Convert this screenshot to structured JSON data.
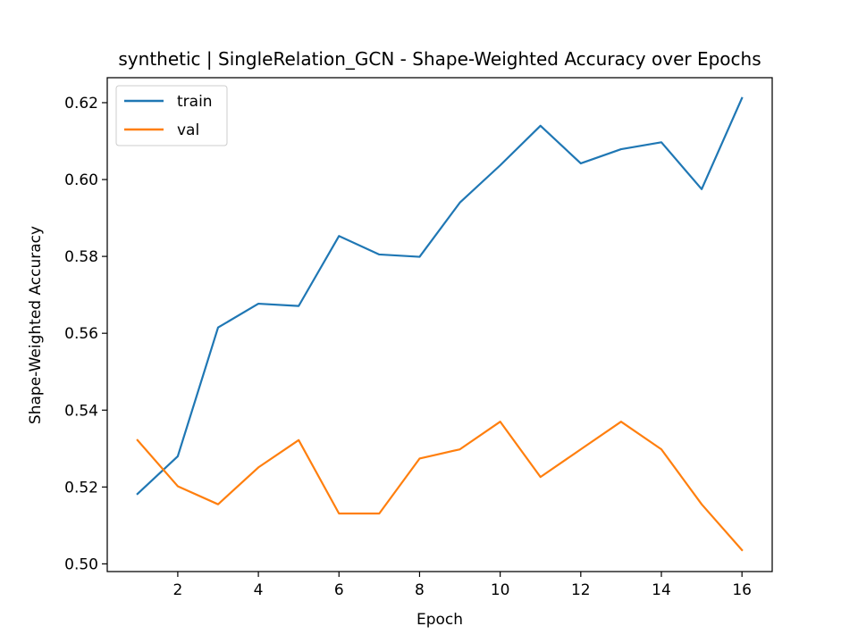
{
  "chart_data": {
    "type": "line",
    "title": "synthetic | SingleRelation_GCN - Shape-Weighted Accuracy over Epochs",
    "xlabel": "Epoch",
    "ylabel": "Shape-Weighted Accuracy",
    "x": [
      1,
      2,
      3,
      4,
      5,
      6,
      7,
      8,
      9,
      10,
      11,
      12,
      13,
      14,
      15,
      16
    ],
    "xlim": [
      0.25,
      16.75
    ],
    "ylim": [
      0.498,
      0.6265
    ],
    "xticks": [
      2,
      4,
      6,
      8,
      10,
      12,
      14,
      16
    ],
    "xtick_labels": [
      "2",
      "4",
      "6",
      "8",
      "10",
      "12",
      "14",
      "16"
    ],
    "yticks": [
      0.5,
      0.52,
      0.54,
      0.56,
      0.58,
      0.6,
      0.62
    ],
    "ytick_labels": [
      "0.50",
      "0.52",
      "0.54",
      "0.56",
      "0.58",
      "0.60",
      "0.62"
    ],
    "grid": false,
    "legend_position": "top-left",
    "series": [
      {
        "name": "train",
        "color": "#1f77b4",
        "values": [
          0.5182,
          0.528,
          0.5615,
          0.5677,
          0.5671,
          0.5853,
          0.5805,
          0.5799,
          0.594,
          0.6037,
          0.614,
          0.6042,
          0.6079,
          0.6097,
          0.5975,
          0.6212
        ]
      },
      {
        "name": "val",
        "color": "#ff7f0e",
        "values": [
          0.5322,
          0.5202,
          0.5155,
          0.5251,
          0.5322,
          0.5131,
          0.5131,
          0.5274,
          0.5298,
          0.537,
          0.5226,
          0.5298,
          0.537,
          0.5298,
          0.5155,
          0.5036
        ]
      }
    ]
  }
}
